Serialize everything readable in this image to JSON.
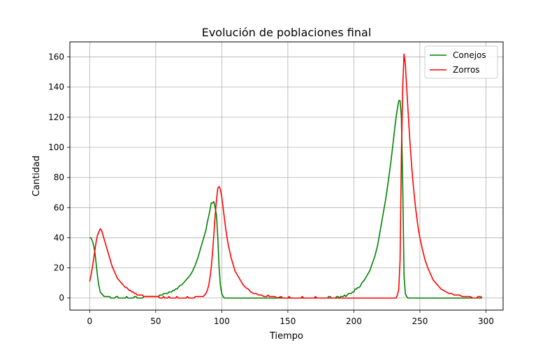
{
  "chart_data": {
    "type": "line",
    "title": "Evolución de poblaciones final",
    "xlabel": "Tiempo",
    "ylabel": "Cantidad",
    "xlim": [
      -15,
      313
    ],
    "ylim": [
      -8,
      170
    ],
    "xticks": [
      0,
      50,
      100,
      150,
      200,
      250,
      300
    ],
    "yticks": [
      0,
      20,
      40,
      60,
      80,
      100,
      120,
      140,
      160
    ],
    "grid": true,
    "legend_position": "top-right",
    "series": [
      {
        "name": "Conejos",
        "color": "#008000",
        "points": [
          [
            0,
            40
          ],
          [
            1,
            40
          ],
          [
            2,
            38
          ],
          [
            3,
            35
          ],
          [
            4,
            30
          ],
          [
            5,
            22
          ],
          [
            6,
            14
          ],
          [
            7,
            8
          ],
          [
            8,
            4
          ],
          [
            9,
            3
          ],
          [
            10,
            2
          ],
          [
            11,
            1
          ],
          [
            12,
            1
          ],
          [
            15,
            1
          ],
          [
            16,
            0
          ],
          [
            19,
            0
          ],
          [
            20,
            1
          ],
          [
            21,
            1
          ],
          [
            22,
            0
          ],
          [
            27,
            0
          ],
          [
            28,
            1
          ],
          [
            29,
            0
          ],
          [
            33,
            0
          ],
          [
            34,
            1
          ],
          [
            35,
            1
          ],
          [
            36,
            0
          ],
          [
            40,
            0
          ],
          [
            41,
            1
          ],
          [
            52,
            1
          ],
          [
            53,
            2
          ],
          [
            55,
            2
          ],
          [
            56,
            3
          ],
          [
            59,
            3
          ],
          [
            60,
            4
          ],
          [
            62,
            4
          ],
          [
            63,
            5
          ],
          [
            64,
            5
          ],
          [
            65,
            6
          ],
          [
            66,
            6
          ],
          [
            67,
            7
          ],
          [
            68,
            8
          ],
          [
            70,
            9
          ],
          [
            72,
            11
          ],
          [
            74,
            13
          ],
          [
            76,
            15
          ],
          [
            78,
            18
          ],
          [
            80,
            22
          ],
          [
            82,
            27
          ],
          [
            84,
            33
          ],
          [
            86,
            39
          ],
          [
            88,
            45
          ],
          [
            89,
            50
          ],
          [
            90,
            54
          ],
          [
            91,
            58
          ],
          [
            92,
            63
          ],
          [
            93,
            63
          ],
          [
            94,
            64
          ],
          [
            95,
            60
          ],
          [
            96,
            55
          ],
          [
            97,
            40
          ],
          [
            98,
            20
          ],
          [
            99,
            8
          ],
          [
            100,
            3
          ],
          [
            101,
            1
          ],
          [
            102,
            0
          ],
          [
            180,
            0
          ],
          [
            181,
            1
          ],
          [
            182,
            1
          ],
          [
            183,
            0
          ],
          [
            186,
            0
          ],
          [
            187,
            1
          ],
          [
            188,
            1
          ],
          [
            189,
            0
          ],
          [
            190,
            1
          ],
          [
            192,
            1
          ],
          [
            193,
            2
          ],
          [
            194,
            1
          ],
          [
            195,
            2
          ],
          [
            196,
            3
          ],
          [
            198,
            3
          ],
          [
            199,
            4
          ],
          [
            200,
            4
          ],
          [
            201,
            6
          ],
          [
            202,
            6
          ],
          [
            203,
            7
          ],
          [
            204,
            7
          ],
          [
            205,
            8
          ],
          [
            206,
            10
          ],
          [
            208,
            12
          ],
          [
            210,
            15
          ],
          [
            212,
            18
          ],
          [
            214,
            23
          ],
          [
            216,
            28
          ],
          [
            218,
            35
          ],
          [
            220,
            45
          ],
          [
            222,
            55
          ],
          [
            224,
            65
          ],
          [
            226,
            77
          ],
          [
            228,
            90
          ],
          [
            230,
            105
          ],
          [
            231,
            113
          ],
          [
            232,
            120
          ],
          [
            233,
            126
          ],
          [
            234,
            131
          ],
          [
            235,
            131
          ],
          [
            236,
            120
          ],
          [
            237,
            75
          ],
          [
            238,
            15
          ],
          [
            239,
            3
          ],
          [
            240,
            1
          ],
          [
            241,
            0
          ],
          [
            297,
            0
          ]
        ]
      },
      {
        "name": "Zorros",
        "color": "#ff0000",
        "points": [
          [
            0,
            11
          ],
          [
            1,
            15
          ],
          [
            2,
            20
          ],
          [
            3,
            26
          ],
          [
            4,
            32
          ],
          [
            5,
            38
          ],
          [
            6,
            42
          ],
          [
            7,
            44
          ],
          [
            8,
            46
          ],
          [
            9,
            45
          ],
          [
            10,
            42
          ],
          [
            11,
            39
          ],
          [
            12,
            36
          ],
          [
            13,
            33
          ],
          [
            14,
            30
          ],
          [
            15,
            27
          ],
          [
            16,
            24
          ],
          [
            17,
            21
          ],
          [
            18,
            19
          ],
          [
            19,
            17
          ],
          [
            20,
            15
          ],
          [
            21,
            13
          ],
          [
            22,
            12
          ],
          [
            23,
            11
          ],
          [
            24,
            10
          ],
          [
            25,
            9
          ],
          [
            26,
            8
          ],
          [
            27,
            7
          ],
          [
            28,
            7
          ],
          [
            29,
            6
          ],
          [
            30,
            5
          ],
          [
            31,
            5
          ],
          [
            32,
            4
          ],
          [
            33,
            4
          ],
          [
            34,
            3
          ],
          [
            35,
            3
          ],
          [
            36,
            2
          ],
          [
            38,
            2
          ],
          [
            39,
            2
          ],
          [
            40,
            2
          ],
          [
            41,
            1
          ],
          [
            46,
            1
          ],
          [
            47,
            1
          ],
          [
            48,
            1
          ],
          [
            49,
            1
          ],
          [
            50,
            1
          ],
          [
            51,
            1
          ],
          [
            52,
            1
          ],
          [
            53,
            0
          ],
          [
            55,
            0
          ],
          [
            56,
            1
          ],
          [
            57,
            0
          ],
          [
            59,
            0
          ],
          [
            60,
            1
          ],
          [
            61,
            0
          ],
          [
            65,
            0
          ],
          [
            66,
            1
          ],
          [
            67,
            0
          ],
          [
            73,
            0
          ],
          [
            74,
            1
          ],
          [
            75,
            0
          ],
          [
            79,
            0
          ],
          [
            80,
            1
          ],
          [
            82,
            1
          ],
          [
            83,
            1
          ],
          [
            84,
            1
          ],
          [
            85,
            1
          ],
          [
            86,
            1
          ],
          [
            87,
            2
          ],
          [
            88,
            3
          ],
          [
            89,
            5
          ],
          [
            90,
            8
          ],
          [
            91,
            13
          ],
          [
            92,
            20
          ],
          [
            93,
            30
          ],
          [
            94,
            42
          ],
          [
            95,
            55
          ],
          [
            96,
            65
          ],
          [
            97,
            73
          ],
          [
            98,
            74
          ],
          [
            99,
            72
          ],
          [
            100,
            67
          ],
          [
            101,
            60
          ],
          [
            102,
            53
          ],
          [
            103,
            46
          ],
          [
            104,
            40
          ],
          [
            105,
            35
          ],
          [
            106,
            31
          ],
          [
            107,
            27
          ],
          [
            108,
            24
          ],
          [
            109,
            21
          ],
          [
            110,
            18
          ],
          [
            112,
            15
          ],
          [
            114,
            12
          ],
          [
            116,
            9
          ],
          [
            118,
            7
          ],
          [
            120,
            6
          ],
          [
            122,
            4
          ],
          [
            124,
            3
          ],
          [
            126,
            3
          ],
          [
            128,
            2
          ],
          [
            130,
            2
          ],
          [
            132,
            1
          ],
          [
            134,
            1
          ],
          [
            135,
            2
          ],
          [
            136,
            1
          ],
          [
            138,
            1
          ],
          [
            140,
            1
          ],
          [
            142,
            0
          ],
          [
            145,
            1
          ],
          [
            146,
            0
          ],
          [
            150,
            0
          ],
          [
            151,
            1
          ],
          [
            152,
            0
          ],
          [
            160,
            0
          ],
          [
            161,
            1
          ],
          [
            162,
            0
          ],
          [
            170,
            0
          ],
          [
            171,
            1
          ],
          [
            172,
            0
          ],
          [
            232,
            0
          ],
          [
            233,
            2
          ],
          [
            234,
            6
          ],
          [
            235,
            25
          ],
          [
            236,
            95
          ],
          [
            237,
            140
          ],
          [
            238,
            162
          ],
          [
            239,
            155
          ],
          [
            240,
            140
          ],
          [
            241,
            125
          ],
          [
            242,
            110
          ],
          [
            243,
            97
          ],
          [
            244,
            85
          ],
          [
            245,
            75
          ],
          [
            246,
            66
          ],
          [
            247,
            58
          ],
          [
            248,
            51
          ],
          [
            249,
            45
          ],
          [
            250,
            40
          ],
          [
            252,
            32
          ],
          [
            254,
            25
          ],
          [
            256,
            20
          ],
          [
            258,
            16
          ],
          [
            260,
            12
          ],
          [
            262,
            10
          ],
          [
            264,
            8
          ],
          [
            266,
            6
          ],
          [
            268,
            5
          ],
          [
            270,
            4
          ],
          [
            272,
            3
          ],
          [
            274,
            3
          ],
          [
            276,
            2
          ],
          [
            278,
            2
          ],
          [
            280,
            2
          ],
          [
            282,
            1
          ],
          [
            286,
            1
          ],
          [
            288,
            1
          ],
          [
            290,
            0
          ],
          [
            293,
            0
          ],
          [
            294,
            1
          ],
          [
            296,
            1
          ],
          [
            297,
            0
          ]
        ]
      }
    ]
  }
}
